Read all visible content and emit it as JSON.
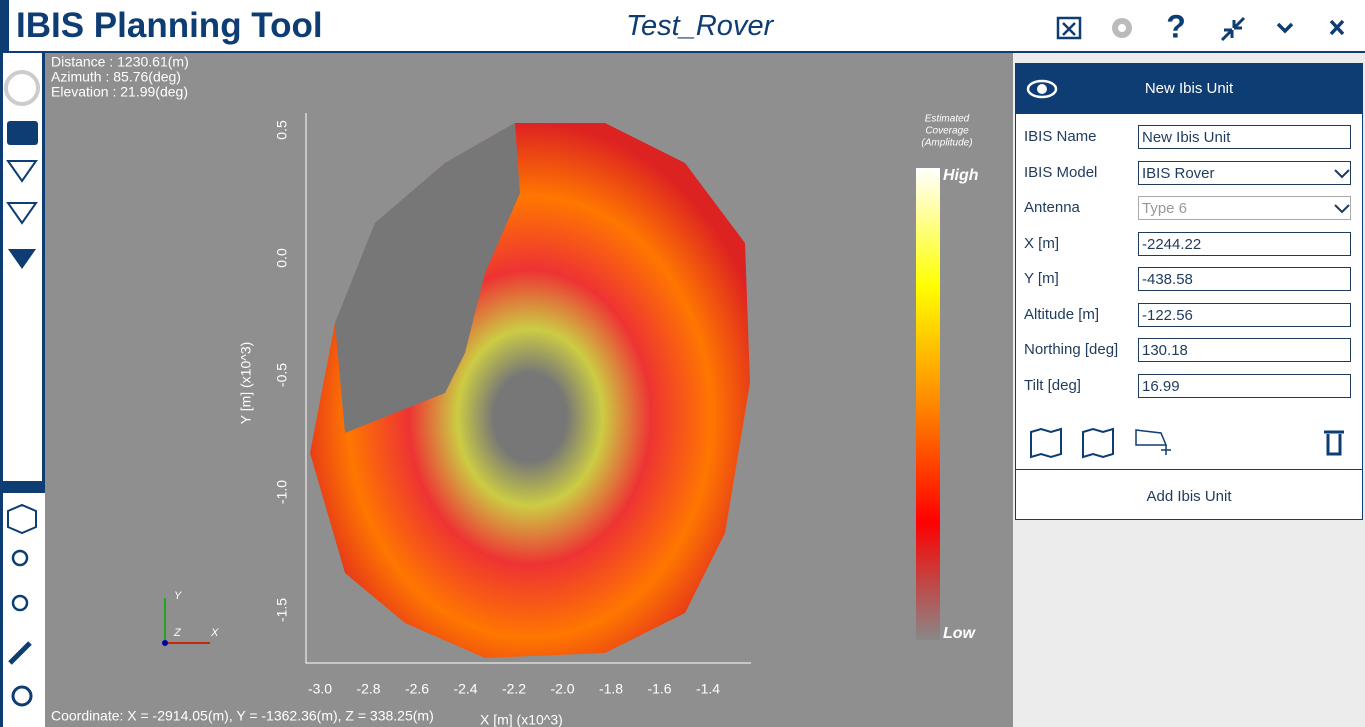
{
  "header": {
    "title": "IBIS Planning Tool",
    "project": "Test_Rover"
  },
  "viewport": {
    "info": [
      "Distance : 1230.61(m)",
      "Azimuth : 85.76(deg)",
      "Elevation : 21.99(deg)"
    ],
    "y_axis_label": "Y [m] (x10^3)",
    "y_ticks": [
      "0.5",
      "0.0",
      "-0.5",
      "-1.0",
      "-1.5"
    ],
    "x_axis_label": "X [m] (x10^3)",
    "x_ticks": [
      "-3.0",
      "-2.8",
      "-2.6",
      "-2.4",
      "-2.2",
      "-2.0",
      "-1.8",
      "-1.6",
      "-1.4"
    ],
    "legend_title": [
      "Estimated",
      "Coverage",
      "(Amplitude)"
    ],
    "legend_high": "High",
    "legend_low": "Low",
    "triad": [
      "Y",
      "Z",
      "X"
    ],
    "coordinate": "Coordinate: X = -2914.05(m), Y = -1362.36(m), Z = 338.25(m)"
  },
  "panel": {
    "header": "New Ibis Unit",
    "fields": [
      {
        "label": "IBIS Name",
        "value": "New Ibis Unit"
      },
      {
        "label": "IBIS Model",
        "value": "IBIS Rover"
      },
      {
        "label": "Antenna",
        "value": "Type 6"
      },
      {
        "label": "X [m]",
        "value": "-2244.22"
      },
      {
        "label": "Y [m]",
        "value": "-438.58"
      },
      {
        "label": "Altitude [m]",
        "value": "-122.56"
      },
      {
        "label": "Northing [deg]",
        "value": "130.18"
      },
      {
        "label": "Tilt [deg]",
        "value": "16.99"
      }
    ],
    "button": "Add Ibis Unit"
  }
}
